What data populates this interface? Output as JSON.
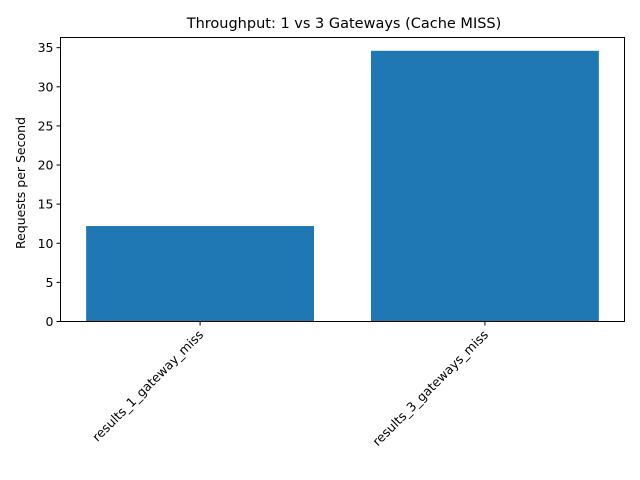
{
  "chart_data": {
    "type": "bar",
    "title": "Throughput: 1 vs 3 Gateways (Cache MISS)",
    "xlabel": "",
    "ylabel": "Requests per Second",
    "categories": [
      "results_1_gateway_miss",
      "results_3_gateways_miss"
    ],
    "values": [
      12.2,
      34.6
    ],
    "ylim": [
      0,
      36.3
    ],
    "yticks": [
      0,
      5,
      10,
      15,
      20,
      25,
      30,
      35
    ],
    "bar_color": "#1f77b4",
    "grid": false,
    "legend": "none"
  }
}
